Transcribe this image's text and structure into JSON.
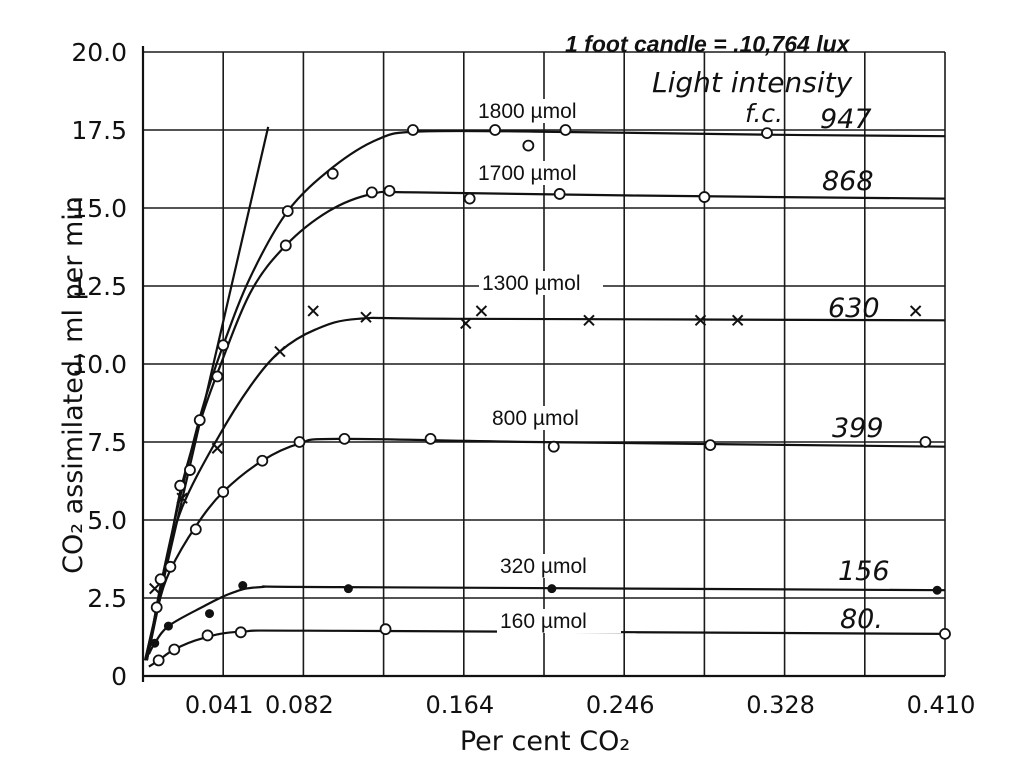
{
  "header": {
    "conversion_note": "1 foot candle = .10,764 lux",
    "light_intensity_label": "Light intensity",
    "unit_label": "f.c."
  },
  "chart_data": {
    "type": "line",
    "title": "",
    "xlabel": "Per cent CO₂",
    "ylabel": "CO₂ assimilated, ml per min",
    "xlim": [
      0,
      0.41
    ],
    "ylim": [
      0,
      20
    ],
    "grid": true,
    "x_ticks": [
      0.041,
      0.082,
      0.164,
      0.246,
      0.328,
      0.41
    ],
    "x_tick_labels": [
      "0.041",
      "0.082",
      "0.164",
      "0.246",
      "0.328",
      "0.410"
    ],
    "y_ticks": [
      0,
      2.5,
      5,
      7.5,
      10,
      12.5,
      15,
      17.5,
      20
    ],
    "y_tick_labels": [
      "0",
      "2.5",
      "5.0",
      "7.5",
      "10.0",
      "12.5",
      "15.0",
      "17.5",
      "20.0"
    ],
    "initial_slope_line": [
      [
        0.001,
        0.5
      ],
      [
        0.064,
        17.6
      ]
    ],
    "series": [
      {
        "name": "1800 µmol",
        "intensity_label": "947",
        "marker": "circle",
        "points": [
          [
            0.041,
            10.6
          ],
          [
            0.074,
            14.9
          ],
          [
            0.097,
            16.1
          ],
          [
            0.138,
            17.5
          ],
          [
            0.18,
            17.5
          ],
          [
            0.197,
            17.0
          ],
          [
            0.216,
            17.5
          ],
          [
            0.319,
            17.4
          ]
        ],
        "curve": [
          [
            0.002,
            0.5
          ],
          [
            0.01,
            3.2
          ],
          [
            0.02,
            6.0
          ],
          [
            0.03,
            8.5
          ],
          [
            0.041,
            10.6
          ],
          [
            0.055,
            12.8
          ],
          [
            0.074,
            14.9
          ],
          [
            0.097,
            16.3
          ],
          [
            0.12,
            17.2
          ],
          [
            0.14,
            17.45
          ],
          [
            0.2,
            17.45
          ],
          [
            0.32,
            17.35
          ],
          [
            0.41,
            17.3
          ]
        ]
      },
      {
        "name": "1700 µmol",
        "intensity_label": "868",
        "marker": "circle",
        "points": [
          [
            0.019,
            6.1
          ],
          [
            0.024,
            6.6
          ],
          [
            0.029,
            8.2
          ],
          [
            0.038,
            9.6
          ],
          [
            0.073,
            13.8
          ],
          [
            0.117,
            15.5
          ],
          [
            0.126,
            15.55
          ],
          [
            0.167,
            15.3
          ],
          [
            0.213,
            15.45
          ],
          [
            0.287,
            15.35
          ]
        ],
        "curve": [
          [
            0.002,
            0.5
          ],
          [
            0.01,
            2.9
          ],
          [
            0.019,
            5.9
          ],
          [
            0.029,
            8.1
          ],
          [
            0.038,
            9.7
          ],
          [
            0.055,
            12.3
          ],
          [
            0.073,
            13.8
          ],
          [
            0.095,
            14.9
          ],
          [
            0.117,
            15.45
          ],
          [
            0.14,
            15.5
          ],
          [
            0.25,
            15.4
          ],
          [
            0.41,
            15.3
          ]
        ]
      },
      {
        "name": "1300 µmol",
        "intensity_label": "630",
        "marker": "cross",
        "points": [
          [
            0.006,
            2.8
          ],
          [
            0.02,
            5.7
          ],
          [
            0.038,
            7.3
          ],
          [
            0.07,
            10.4
          ],
          [
            0.087,
            11.7
          ],
          [
            0.114,
            11.5
          ],
          [
            0.165,
            11.3
          ],
          [
            0.173,
            11.7
          ],
          [
            0.228,
            11.4
          ],
          [
            0.285,
            11.4
          ],
          [
            0.304,
            11.4
          ],
          [
            0.395,
            11.7
          ]
        ],
        "curve": [
          [
            0.003,
            0.8
          ],
          [
            0.01,
            3.2
          ],
          [
            0.02,
            5.4
          ],
          [
            0.038,
            7.6
          ],
          [
            0.055,
            9.3
          ],
          [
            0.07,
            10.4
          ],
          [
            0.088,
            11.1
          ],
          [
            0.11,
            11.45
          ],
          [
            0.16,
            11.45
          ],
          [
            0.41,
            11.4
          ]
        ]
      },
      {
        "name": "800 µmol",
        "intensity_label": "399",
        "marker": "circle",
        "points": [
          [
            0.007,
            2.2
          ],
          [
            0.009,
            3.1
          ],
          [
            0.014,
            3.5
          ],
          [
            0.027,
            4.7
          ],
          [
            0.041,
            5.9
          ],
          [
            0.061,
            6.9
          ],
          [
            0.08,
            7.5
          ],
          [
            0.103,
            7.6
          ],
          [
            0.147,
            7.6
          ],
          [
            0.21,
            7.35
          ],
          [
            0.29,
            7.4
          ],
          [
            0.4,
            7.5
          ]
        ],
        "curve": [
          [
            0.003,
            0.8
          ],
          [
            0.008,
            2.3
          ],
          [
            0.014,
            3.4
          ],
          [
            0.027,
            4.8
          ],
          [
            0.041,
            5.9
          ],
          [
            0.061,
            6.9
          ],
          [
            0.08,
            7.45
          ],
          [
            0.1,
            7.6
          ],
          [
            0.2,
            7.5
          ],
          [
            0.41,
            7.35
          ]
        ]
      },
      {
        "name": "320 µmol",
        "intensity_label": "156",
        "marker": "dot",
        "points": [
          [
            0.006,
            1.05
          ],
          [
            0.013,
            1.6
          ],
          [
            0.034,
            2.0
          ],
          [
            0.051,
            2.9
          ],
          [
            0.105,
            2.8
          ],
          [
            0.209,
            2.8
          ],
          [
            0.406,
            2.75
          ]
        ],
        "curve": [
          [
            0.003,
            0.7
          ],
          [
            0.006,
            1.05
          ],
          [
            0.013,
            1.6
          ],
          [
            0.03,
            2.2
          ],
          [
            0.045,
            2.65
          ],
          [
            0.06,
            2.85
          ],
          [
            0.1,
            2.85
          ],
          [
            0.41,
            2.75
          ]
        ]
      },
      {
        "name": "160 µmol",
        "intensity_label": "80.",
        "marker": "circle",
        "points": [
          [
            0.008,
            0.5
          ],
          [
            0.016,
            0.85
          ],
          [
            0.033,
            1.3
          ],
          [
            0.05,
            1.4
          ],
          [
            0.124,
            1.5
          ],
          [
            0.41,
            1.35
          ]
        ],
        "curve": [
          [
            0.003,
            0.3
          ],
          [
            0.008,
            0.5
          ],
          [
            0.016,
            0.85
          ],
          [
            0.03,
            1.2
          ],
          [
            0.05,
            1.42
          ],
          [
            0.1,
            1.45
          ],
          [
            0.41,
            1.35
          ]
        ]
      }
    ]
  }
}
